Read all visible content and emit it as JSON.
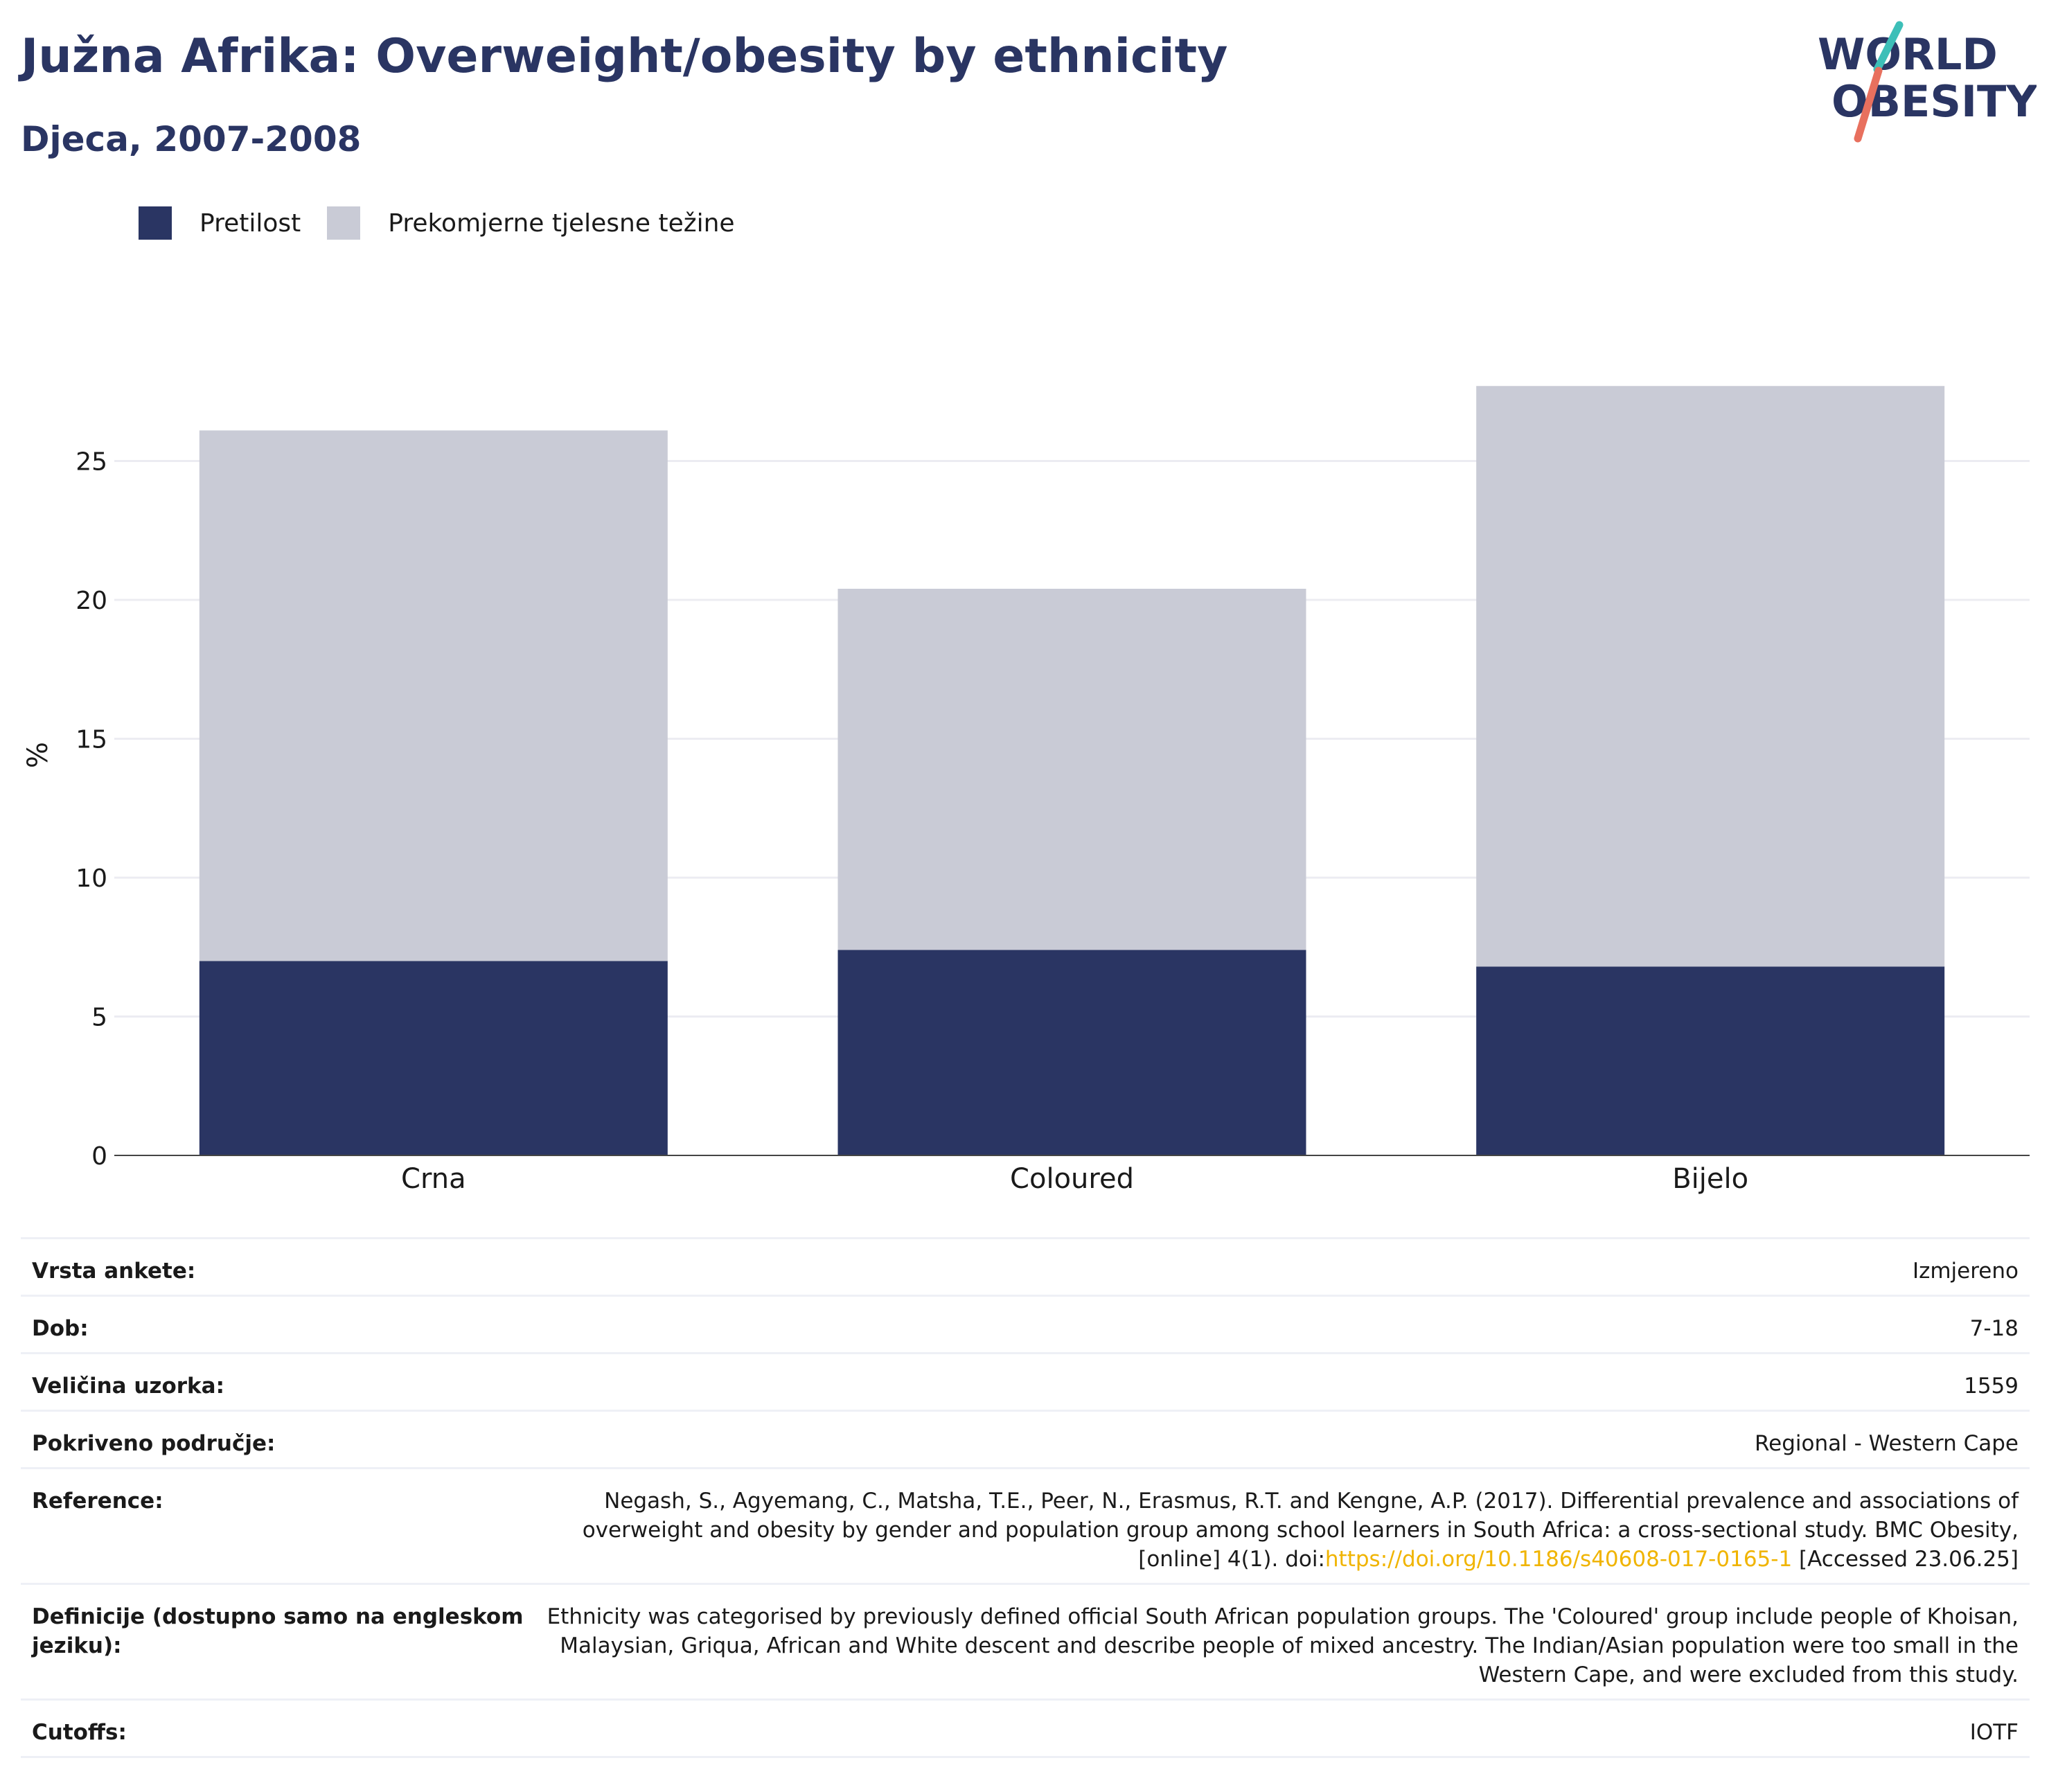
{
  "header": {
    "title": "Južna Afrika: Overweight/obesity by ethnicity",
    "subtitle": "Djeca, 2007-2008"
  },
  "logo": {
    "line1": "WORLD",
    "line2": "OBESITY",
    "accent_teal": "#3dbfb8",
    "accent_coral": "#e8705e"
  },
  "legend": [
    {
      "label": "Pretilost",
      "color": "#2a3563"
    },
    {
      "label": "Prekomjerne tjelesne težine",
      "color": "#c9cbd6"
    }
  ],
  "chart_data": {
    "type": "bar",
    "stacked": true,
    "categories": [
      "Crna",
      "Coloured",
      "Bijelo"
    ],
    "series": [
      {
        "name": "Pretilost",
        "values": [
          7.0,
          7.4,
          6.8
        ],
        "color": "#2a3563"
      },
      {
        "name": "Prekomjerne tjelesne težine",
        "values": [
          19.1,
          13.0,
          20.9
        ],
        "color": "#c9cbd6"
      }
    ],
    "ylabel": "%",
    "yticks": [
      0,
      5,
      10,
      15,
      20,
      25
    ],
    "ylim": [
      0,
      30
    ],
    "grid": true,
    "legend_position": "top-left"
  },
  "metadata": [
    {
      "key": "Vrsta ankete:",
      "value": "Izmjereno"
    },
    {
      "key": "Dob:",
      "value": "7-18"
    },
    {
      "key": "Veličina uzorka:",
      "value": "1559"
    },
    {
      "key": "Pokriveno područje:",
      "value": "Regional - Western Cape"
    },
    {
      "key": "Reference:",
      "value_pre": "Negash, S., Agyemang, C., Matsha, T.E., Peer, N., Erasmus, R.T. and Kengne, A.P. (2017). Differential prevalence and associations of overweight and obesity by gender and population group among school learners in South Africa: a cross-sectional study. BMC Obesity, [online] 4(1). doi:",
      "link": "https://doi.org/10.1186/s40608-017-0165-1",
      "value_post": " [Accessed 23.06.25]"
    },
    {
      "key": "Definicije (dostupno samo na engleskom jeziku):",
      "value": "Ethnicity was categorised by previously defined official South African population groups. The 'Coloured' group include people of Khoisan, Malaysian, Griqua, African and White descent and describe people of mixed ancestry. The Indian/Asian population were too small in the Western Cape, and were excluded from this study."
    },
    {
      "key": "Cutoffs:",
      "value": "IOTF"
    }
  ]
}
